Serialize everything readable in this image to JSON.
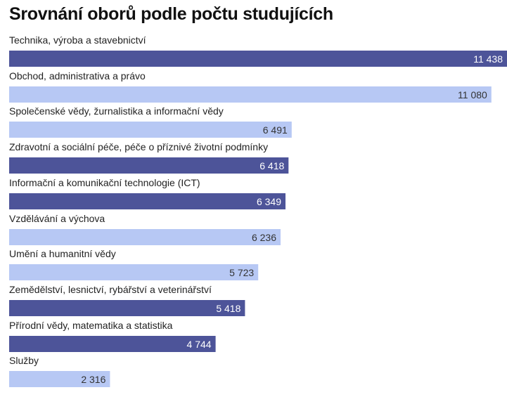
{
  "chart_data": {
    "type": "bar",
    "orientation": "horizontal",
    "title": "Srovnání oborů podle počtu studujících",
    "categories": [
      "Technika, výroba a stavebnictví",
      "Obchod, administrativa a právo",
      "Společenské vědy, žurnalistika a informační vědy",
      "Zdravotní a sociální péče, péče o příznivé životní podmínky",
      "Informační a komunikační technologie (ICT)",
      "Vzdělávání a výchova",
      "Umění a humanitní vědy",
      "Zemědělství, lesnictví, rybářství a veterinářství",
      "Přírodní vědy, matematika a statistika",
      "Služby"
    ],
    "values": [
      11438,
      11080,
      6491,
      6418,
      6349,
      6236,
      5723,
      5418,
      4744,
      2316
    ],
    "value_labels": [
      "11 438",
      "11 080",
      "6 491",
      "6 418",
      "6 349",
      "6 236",
      "5 723",
      "5 418",
      "4 744",
      "2 316"
    ],
    "bar_shades": [
      "dark",
      "light",
      "light",
      "dark",
      "dark",
      "light",
      "light",
      "dark",
      "dark",
      "light"
    ],
    "colors": {
      "dark": "#4d5499",
      "light": "#b7c8f4",
      "label_on_dark": "#ffffff",
      "label_on_light": "#333333"
    },
    "xlim": [
      0,
      11438
    ],
    "xlabel": "",
    "ylabel": "",
    "grid": false,
    "legend": "none"
  }
}
